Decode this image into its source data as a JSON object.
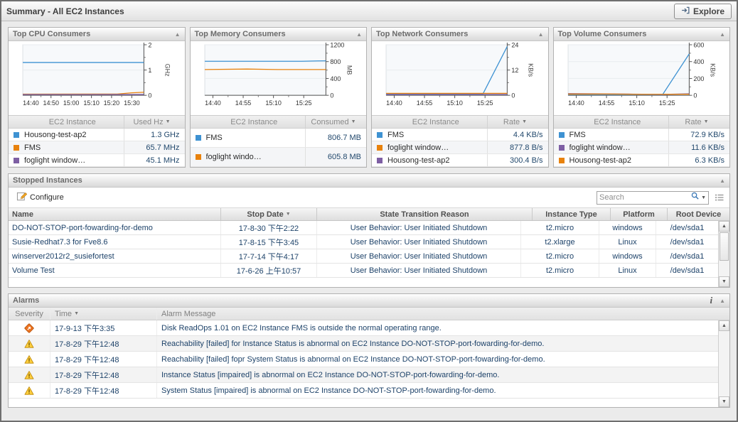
{
  "titlebar": {
    "title": "Summary - All EC2 Instances",
    "explore_label": "Explore"
  },
  "icons": {
    "sort_desc": "▼",
    "collapse": "▲",
    "info": "i",
    "scroll_up": "▲",
    "scroll_down": "▼"
  },
  "colors": {
    "series_blue": "#3e92d2",
    "series_orange": "#e8820d",
    "series_purple": "#7e5fa4",
    "critical": "#ed7422",
    "warning": "#ffcf3d"
  },
  "panels": [
    {
      "title": "Top CPU Consumers",
      "table": {
        "name_header": "EC2 Instance",
        "value_header": "Used Hz",
        "rows": [
          {
            "color": "#3e92d2",
            "name": "Housong-test-ap2",
            "value": "1.3 GHz"
          },
          {
            "color": "#e8820d",
            "name": "FMS",
            "value": "65.7 MHz"
          },
          {
            "color": "#7e5fa4",
            "name": "foglight window…",
            "value": "45.1 MHz"
          }
        ]
      },
      "chart_data": {
        "type": "line",
        "ylabel": "GHz",
        "ylim": [
          0,
          2
        ],
        "yticks": [
          0,
          1,
          2
        ],
        "xticks": [
          {
            "label": "14:40",
            "pos": 0.067
          },
          {
            "label": "14:50",
            "pos": 0.233
          },
          {
            "label": "15:00",
            "pos": 0.4
          },
          {
            "label": "15:10",
            "pos": 0.567
          },
          {
            "label": "15:20",
            "pos": 0.733
          },
          {
            "label": "15:30",
            "pos": 0.9
          }
        ],
        "series": [
          {
            "name": "Housong-test-ap2",
            "color": "#3e92d2",
            "points": [
              [
                0,
                1.3
              ],
              [
                1,
                1.3
              ]
            ]
          },
          {
            "name": "FMS",
            "color": "#e8820d",
            "points": [
              [
                0,
                0.045
              ],
              [
                0.78,
                0.05
              ],
              [
                0.9,
                0.1
              ],
              [
                1,
                0.12
              ]
            ]
          },
          {
            "name": "foglight window…",
            "color": "#7e5fa4",
            "points": [
              [
                0,
                0.03
              ],
              [
                1,
                0.035
              ]
            ]
          }
        ]
      }
    },
    {
      "title": "Top Memory Consumers",
      "table": {
        "name_header": "EC2 Instance",
        "value_header": "Consumed",
        "rows": [
          {
            "color": "#3e92d2",
            "name": "FMS",
            "value": "806.7 MB"
          },
          {
            "color": "#e8820d",
            "name": "foglight windo…",
            "value": "605.8 MB"
          }
        ]
      },
      "chart_data": {
        "type": "line",
        "ylabel": "MB",
        "ylim": [
          0,
          1200
        ],
        "yticks": [
          0,
          400,
          800,
          1200
        ],
        "xticks": [
          {
            "label": "14:40",
            "pos": 0.067
          },
          {
            "label": "14:55",
            "pos": 0.317
          },
          {
            "label": "15:10",
            "pos": 0.567
          },
          {
            "label": "15:25",
            "pos": 0.817
          }
        ],
        "series": [
          {
            "name": "FMS",
            "color": "#3e92d2",
            "points": [
              [
                0,
                808
              ],
              [
                0.8,
                808
              ],
              [
                0.93,
                816
              ],
              [
                1,
                818
              ]
            ]
          },
          {
            "name": "foglight windo…",
            "color": "#e8820d",
            "points": [
              [
                0,
                612
              ],
              [
                0.35,
                624
              ],
              [
                0.6,
                612
              ],
              [
                1,
                612
              ]
            ]
          }
        ]
      }
    },
    {
      "title": "Top Network Consumers",
      "table": {
        "name_header": "EC2 Instance",
        "value_header": "Rate",
        "rows": [
          {
            "color": "#3e92d2",
            "name": "FMS",
            "value": "4.4 KB/s"
          },
          {
            "color": "#e8820d",
            "name": "foglight window…",
            "value": "877.8 B/s"
          },
          {
            "color": "#7e5fa4",
            "name": "Housong-test-ap2",
            "value": "300.4 B/s"
          }
        ]
      },
      "chart_data": {
        "type": "line",
        "ylabel": "KB/s",
        "ylim": [
          0,
          24
        ],
        "yticks": [
          0,
          12,
          24
        ],
        "xticks": [
          {
            "label": "14:40",
            "pos": 0.067
          },
          {
            "label": "14:55",
            "pos": 0.317
          },
          {
            "label": "15:10",
            "pos": 0.567
          },
          {
            "label": "15:25",
            "pos": 0.817
          }
        ],
        "series": [
          {
            "name": "FMS",
            "color": "#3e92d2",
            "points": [
              [
                0,
                0.7
              ],
              [
                0.8,
                0.7
              ],
              [
                1,
                23.2
              ]
            ]
          },
          {
            "name": "foglight window…",
            "color": "#e8820d",
            "points": [
              [
                0,
                0.95
              ],
              [
                1,
                0.95
              ]
            ]
          },
          {
            "name": "Housong-test-ap2",
            "color": "#7e5fa4",
            "points": [
              [
                0,
                0.4
              ],
              [
                1,
                0.45
              ]
            ]
          }
        ]
      }
    },
    {
      "title": "Top Volume Consumers",
      "table": {
        "name_header": "EC2 Instance",
        "value_header": "Rate",
        "rows": [
          {
            "color": "#3e92d2",
            "name": "FMS",
            "value": "72.9 KB/s"
          },
          {
            "color": "#7e5fa4",
            "name": "foglight window…",
            "value": "11.6 KB/s"
          },
          {
            "color": "#e8820d",
            "name": "Housong-test-ap2",
            "value": "6.3 KB/s"
          }
        ]
      },
      "chart_data": {
        "type": "line",
        "ylabel": "KB/s",
        "ylim": [
          0,
          600
        ],
        "yticks": [
          0,
          200,
          400,
          600
        ],
        "xticks": [
          {
            "label": "14:40",
            "pos": 0.067
          },
          {
            "label": "14:55",
            "pos": 0.317
          },
          {
            "label": "15:10",
            "pos": 0.567
          },
          {
            "label": "15:25",
            "pos": 0.817
          }
        ],
        "series": [
          {
            "name": "FMS",
            "color": "#3e92d2",
            "points": [
              [
                0,
                10
              ],
              [
                0.78,
                8
              ],
              [
                1,
                492
              ]
            ]
          },
          {
            "name": "foglight window…",
            "color": "#7e5fa4",
            "points": [
              [
                0,
                20
              ],
              [
                0.5,
                14
              ],
              [
                0.78,
                10
              ],
              [
                1,
                18
              ]
            ]
          },
          {
            "name": "Housong-test-ap2",
            "color": "#e8820d",
            "points": [
              [
                0,
                14
              ],
              [
                0.3,
                16
              ],
              [
                0.6,
                12
              ],
              [
                1,
                13
              ]
            ]
          }
        ]
      }
    }
  ],
  "stopped": {
    "title": "Stopped Instances",
    "configure_label": "Configure",
    "search_placeholder": "Search",
    "columns": [
      "Name",
      "Stop Date",
      "State Transition Reason",
      "Instance Type",
      "Platform",
      "Root Device"
    ],
    "rows": [
      {
        "name": "DO-NOT-STOP-port-fowarding-for-demo",
        "stop_date": "17-8-30 下午2:22",
        "reason": "User Behavior: User Initiated Shutdown",
        "instance_type": "t2.micro",
        "platform": "windows",
        "root_device": "/dev/sda1"
      },
      {
        "name": "Susie-Redhat7.3 for Fve8.6",
        "stop_date": "17-8-15 下午3:45",
        "reason": "User Behavior: User Initiated Shutdown",
        "instance_type": "t2.xlarge",
        "platform": "Linux",
        "root_device": "/dev/sda1"
      },
      {
        "name": "winserver2012r2_susiefortest",
        "stop_date": "17-7-14 下午4:17",
        "reason": "User Behavior: User Initiated Shutdown",
        "instance_type": "t2.micro",
        "platform": "windows",
        "root_device": "/dev/sda1"
      },
      {
        "name": "Volume Test",
        "stop_date": "17-6-26 上午10:57",
        "reason": "User Behavior: User Initiated Shutdown",
        "instance_type": "t2.micro",
        "platform": "Linux",
        "root_device": "/dev/sda1"
      }
    ]
  },
  "alarms": {
    "title": "Alarms",
    "columns": [
      "Severity",
      "Time",
      "Alarm Message"
    ],
    "rows": [
      {
        "severity": "critical",
        "time": "17-9-13 下午3:35",
        "message": "Disk ReadOps 1.01 on EC2 Instance FMS is outside the normal operating range."
      },
      {
        "severity": "warning",
        "time": "17-8-29 下午12:48",
        "message": "Reachability [failed] for Instance Status is abnormal on EC2 Instance DO-NOT-STOP-port-fowarding-for-demo."
      },
      {
        "severity": "warning",
        "time": "17-8-29 下午12:48",
        "message": "Reachability [failed] fopr System Status is abnormal on EC2 Instance DO-NOT-STOP-port-fowarding-for-demo."
      },
      {
        "severity": "warning",
        "time": "17-8-29 下午12:48",
        "message": "Instance Status [impaired] is abnormal on EC2 Instance DO-NOT-STOP-port-fowarding-for-demo."
      },
      {
        "severity": "warning",
        "time": "17-8-29 下午12:48",
        "message": "System Status [impaired] is abnormal on EC2 Instance DO-NOT-STOP-port-fowarding-for-demo."
      }
    ]
  }
}
